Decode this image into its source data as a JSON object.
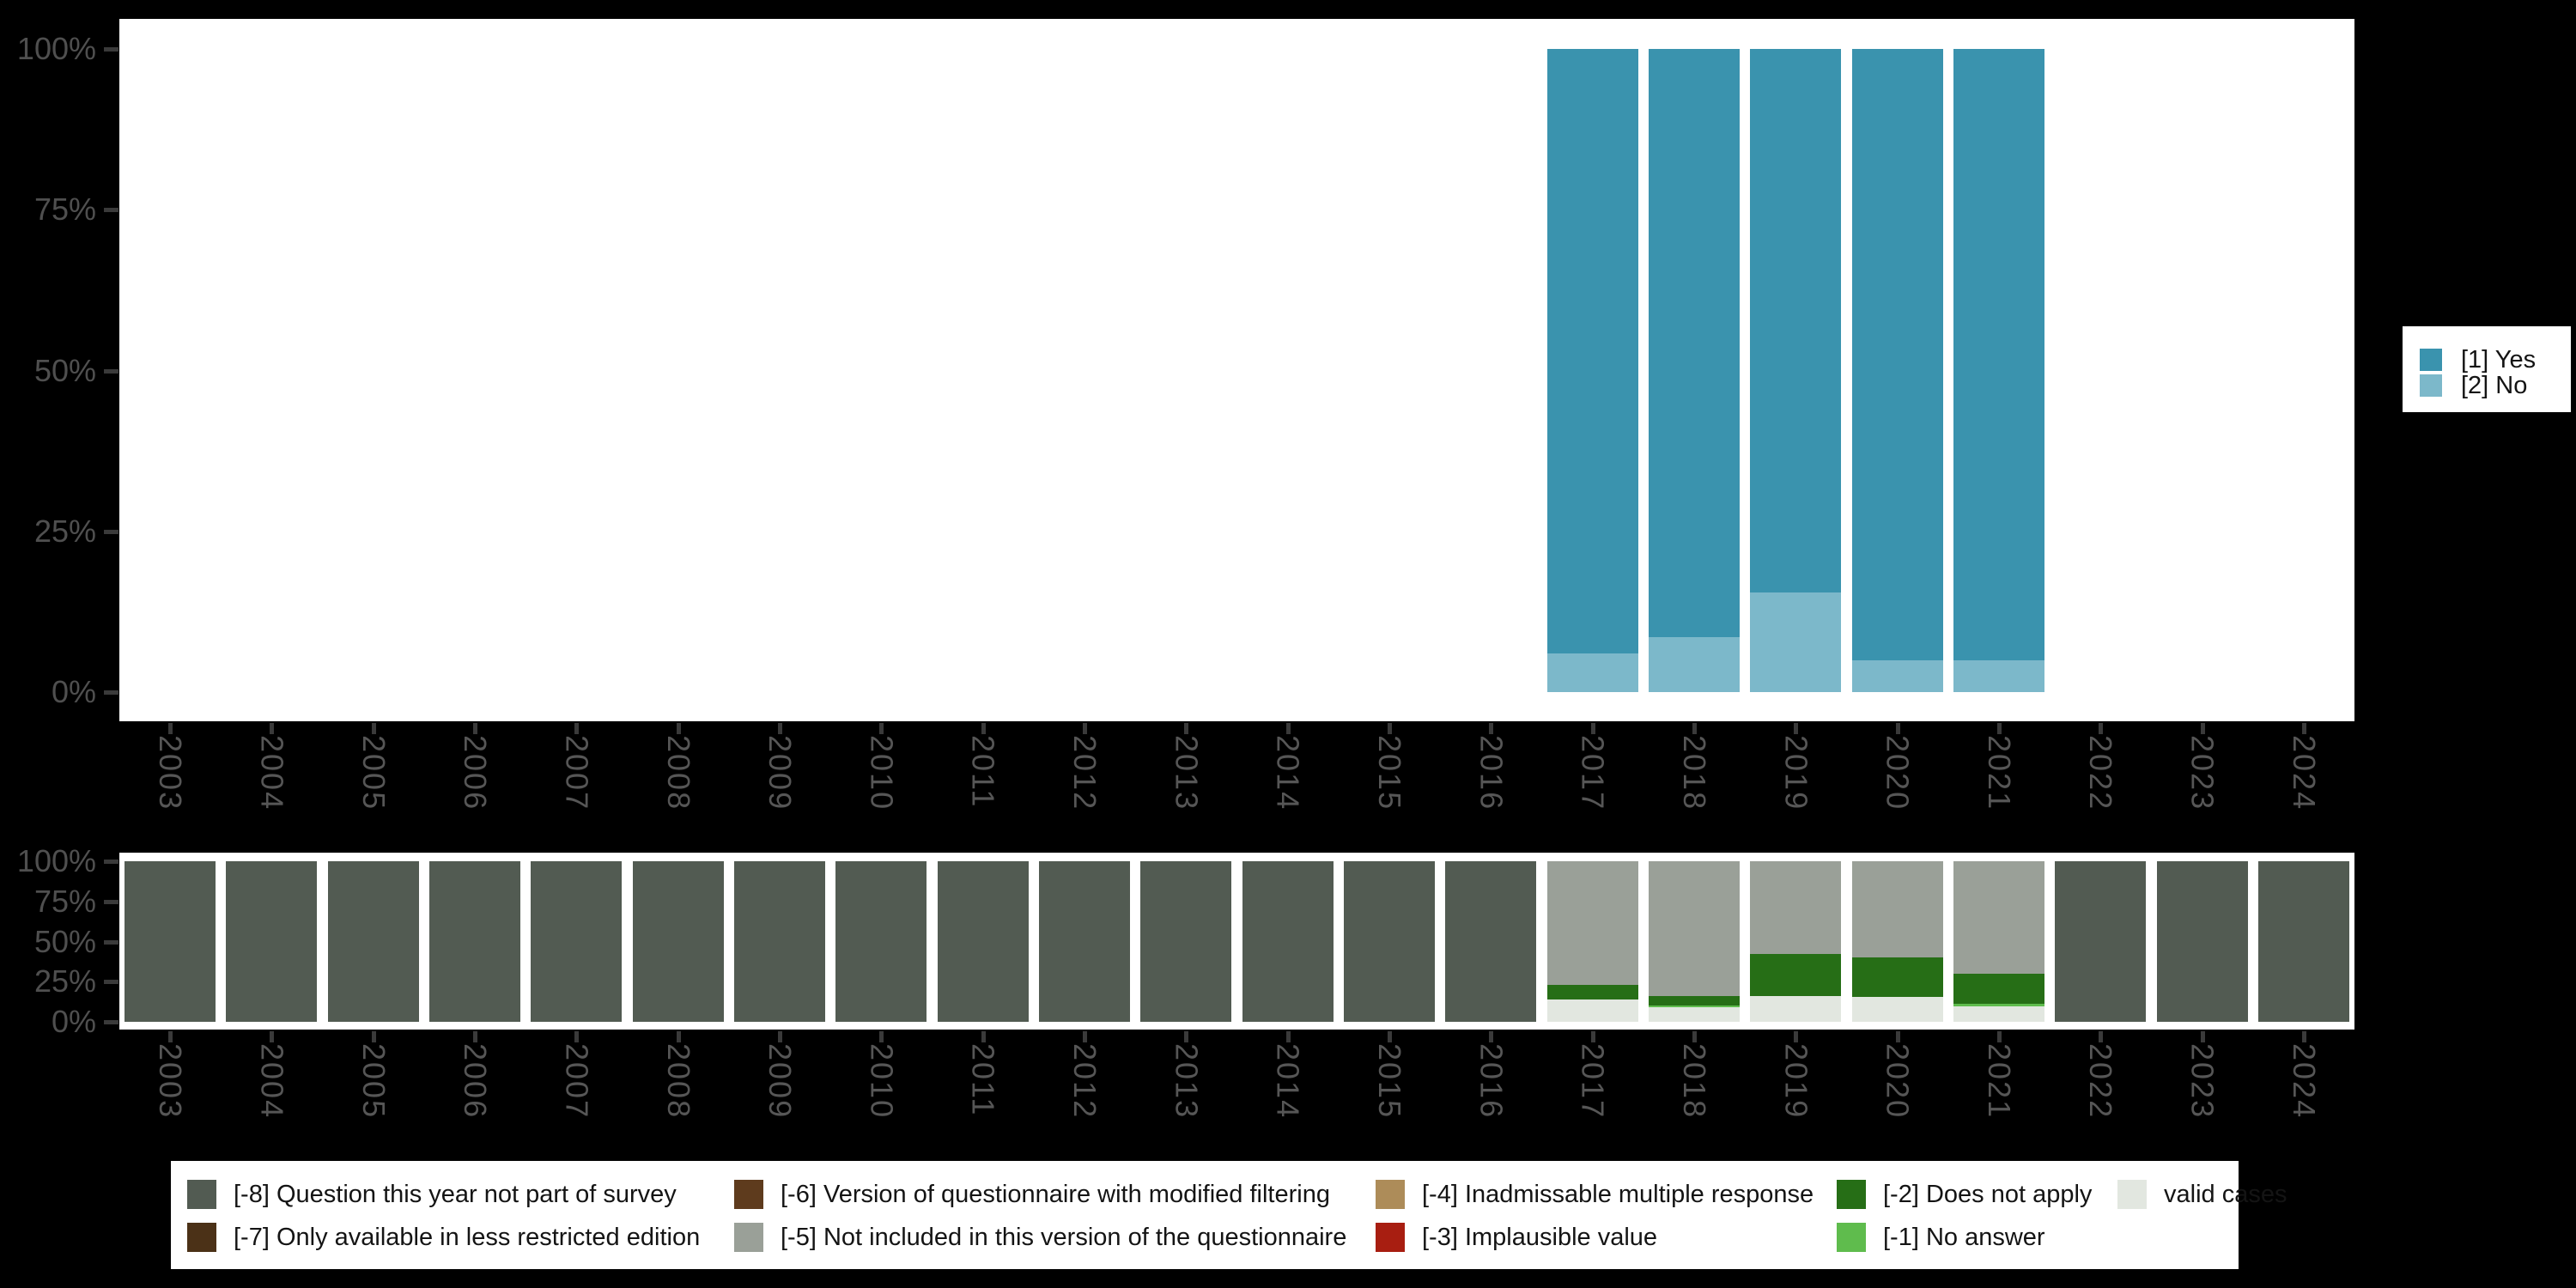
{
  "page": {
    "background": "#000000",
    "panel_background": "#ffffff"
  },
  "axis": {
    "y_tick_labels": [
      "100%",
      "75%",
      "50%",
      "25%",
      "0%"
    ],
    "x_tick_labels": [
      "2003",
      "2004",
      "2005",
      "2006",
      "2007",
      "2008",
      "2009",
      "2010",
      "2011",
      "2012",
      "2013",
      "2014",
      "2015",
      "2016",
      "2017",
      "2018",
      "2019",
      "2020",
      "2021",
      "2022",
      "2023",
      "2024"
    ],
    "text_color": "#565656",
    "tick_color": "#3a3a3a"
  },
  "chart_data": [
    {
      "id": "responses",
      "type": "bar",
      "stacked": true,
      "unit": "percent",
      "ylim": [
        0,
        100
      ],
      "grid": false,
      "legend_position": "right",
      "categories": [
        "2003",
        "2004",
        "2005",
        "2006",
        "2007",
        "2008",
        "2009",
        "2010",
        "2011",
        "2012",
        "2013",
        "2014",
        "2015",
        "2016",
        "2017",
        "2018",
        "2019",
        "2020",
        "2021",
        "2022",
        "2023",
        "2024"
      ],
      "y_ticks": [
        "100%",
        "75%",
        "50%",
        "25%",
        "0%"
      ],
      "series": [
        {
          "label": "[1] Yes",
          "color": "#3a93ae",
          "values": {
            "2017": 94,
            "2018": 91.5,
            "2019": 84.5,
            "2020": 95,
            "2021": 95
          }
        },
        {
          "label": "[2] No",
          "color": "#7cb8ca",
          "values": {
            "2017": 6,
            "2018": 8.5,
            "2019": 15.5,
            "2020": 5,
            "2021": 5
          }
        }
      ]
    },
    {
      "id": "missings",
      "type": "bar",
      "stacked": true,
      "unit": "percent",
      "ylim": [
        0,
        100
      ],
      "grid": false,
      "legend_position": "bottom",
      "categories": [
        "2003",
        "2004",
        "2005",
        "2006",
        "2007",
        "2008",
        "2009",
        "2010",
        "2011",
        "2012",
        "2013",
        "2014",
        "2015",
        "2016",
        "2017",
        "2018",
        "2019",
        "2020",
        "2021",
        "2022",
        "2023",
        "2024"
      ],
      "y_ticks": [
        "100%",
        "75%",
        "50%",
        "25%",
        "0%"
      ],
      "series": [
        {
          "label": "[-8] Question this year not part of survey",
          "color": "#525b52",
          "values": {
            "2003": 100,
            "2004": 100,
            "2005": 100,
            "2006": 100,
            "2007": 100,
            "2008": 100,
            "2009": 100,
            "2010": 100,
            "2011": 100,
            "2012": 100,
            "2013": 100,
            "2014": 100,
            "2015": 100,
            "2016": 100,
            "2022": 100,
            "2023": 100,
            "2024": 100
          }
        },
        {
          "label": "[-7] Only available in less restricted edition",
          "color": "#4b3117",
          "values": {}
        },
        {
          "label": "[-6] Version of questionnaire with modified filtering",
          "color": "#5e3b1d",
          "values": {}
        },
        {
          "label": "[-5] Not included in this version of the questionnaire",
          "color": "#9aa098",
          "values": {
            "2017": 77,
            "2018": 84,
            "2019": 57.5,
            "2020": 60,
            "2021": 70
          }
        },
        {
          "label": "[-4] Inadmissable multiple response",
          "color": "#ad8c59",
          "values": {}
        },
        {
          "label": "[-3] Implausible value",
          "color": "#a81e11",
          "values": {}
        },
        {
          "label": "[-2] Does not apply",
          "color": "#266e16",
          "values": {
            "2017": 9,
            "2018": 6,
            "2019": 26.5,
            "2020": 24.5,
            "2021": 19
          }
        },
        {
          "label": "[-1] No answer",
          "color": "#5fbc4d",
          "values": {
            "2018": 1,
            "2021": 1.5
          }
        },
        {
          "label": "valid cases",
          "color": "#e2e7e0",
          "values": {
            "2017": 14,
            "2018": 9,
            "2019": 16,
            "2020": 15.5,
            "2021": 9.5
          }
        }
      ]
    }
  ]
}
